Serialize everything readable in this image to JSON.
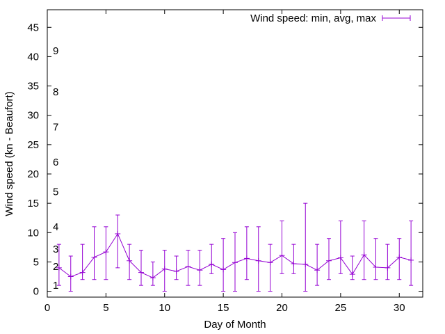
{
  "chart_data": {
    "type": "line",
    "title": "",
    "xlabel": "Day of Month",
    "ylabel": "Wind speed (kn - Beaufort)",
    "xlim": [
      0,
      32
    ],
    "ylim": [
      -1,
      48
    ],
    "x_ticks": [
      0,
      5,
      10,
      15,
      20,
      25,
      30
    ],
    "y_ticks": [
      0,
      5,
      10,
      15,
      20,
      25,
      30,
      35,
      40,
      45
    ],
    "grid": false,
    "legend_position": "top-right",
    "series": [
      {
        "name": "Wind speed: min, avg, max",
        "color": "#9400d3",
        "style": "lines with error bars",
        "x": [
          1,
          2,
          3,
          4,
          5,
          6,
          7,
          8,
          9,
          10,
          11,
          12,
          13,
          14,
          15,
          16,
          17,
          18,
          19,
          20,
          21,
          22,
          23,
          24,
          25,
          26,
          27,
          28,
          29,
          30,
          31
        ],
        "avg": [
          4.0,
          2.5,
          3.2,
          5.8,
          6.7,
          9.8,
          5.2,
          3.2,
          2.3,
          3.8,
          3.4,
          4.2,
          3.6,
          4.6,
          3.7,
          4.9,
          5.6,
          5.2,
          4.9,
          6.1,
          4.7,
          4.6,
          3.6,
          5.2,
          5.7,
          2.9,
          6.2,
          4.1,
          4.0,
          5.8,
          5.3
        ],
        "min": [
          1,
          0,
          2,
          2,
          2,
          4,
          2,
          1,
          1,
          0,
          2,
          1,
          1,
          3,
          0,
          0,
          2,
          0,
          0,
          3,
          3,
          0,
          1,
          2,
          3,
          2,
          2,
          2,
          2,
          2,
          1
        ],
        "max": [
          8,
          6,
          8,
          11,
          11,
          13,
          8,
          7,
          5,
          7,
          6,
          7,
          7,
          8,
          9,
          10,
          11,
          11,
          8,
          12,
          8,
          15,
          8,
          9,
          12,
          6,
          12,
          9,
          8,
          9,
          12
        ]
      }
    ],
    "annotations": [
      {
        "label": "1",
        "y": 1
      },
      {
        "label": "2",
        "y": 4.2
      },
      {
        "label": "3",
        "y": 7.2
      },
      {
        "label": "4",
        "y": 11
      },
      {
        "label": "5",
        "y": 17
      },
      {
        "label": "6",
        "y": 22
      },
      {
        "label": "7",
        "y": 28
      },
      {
        "label": "8",
        "y": 34
      },
      {
        "label": "9",
        "y": 41
      }
    ]
  }
}
